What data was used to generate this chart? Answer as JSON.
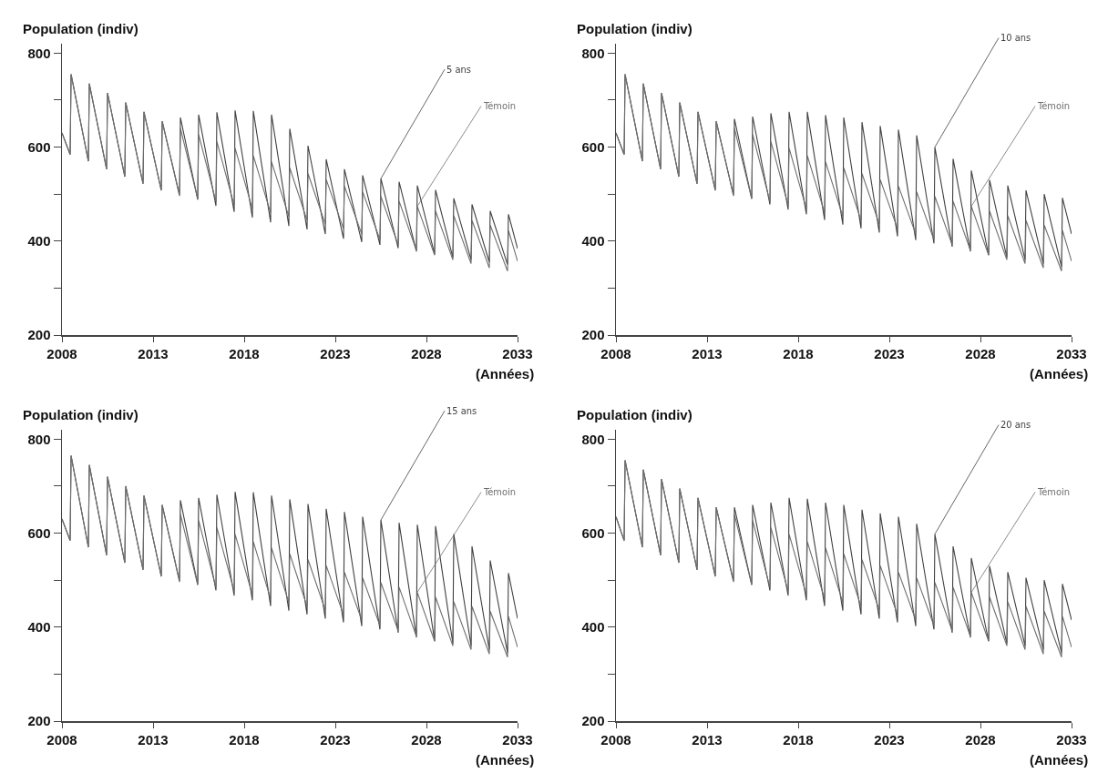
{
  "chart_data": [
    {
      "type": "line",
      "xlabel": "(Années)",
      "ylabel": "Population (indiv)",
      "xlim": [
        2008,
        2033
      ],
      "ylim": [
        200,
        820
      ],
      "xticks": [
        2008,
        2013,
        2018,
        2023,
        2028,
        2033
      ],
      "yticks": [
        200,
        {
          "value": 300,
          "label": null
        },
        400,
        {
          "value": 500,
          "label": null
        },
        600,
        {
          "value": 700,
          "label": null
        },
        800
      ],
      "legend": false,
      "grid": false,
      "x": [
        2008,
        2008.45,
        2008.5,
        2009.45,
        2009.5,
        2010.45,
        2010.5,
        2011.45,
        2011.5,
        2012.45,
        2012.5,
        2013.45,
        2013.5,
        2014.45,
        2014.5,
        2015.45,
        2015.5,
        2016.45,
        2016.5,
        2017.45,
        2017.5,
        2018.45,
        2018.5,
        2019.45,
        2019.5,
        2020.45,
        2020.5,
        2021.45,
        2021.5,
        2022.45,
        2022.5,
        2023.45,
        2023.5,
        2024.45,
        2024.5,
        2025.45,
        2025.5,
        2026.45,
        2026.5,
        2027.45,
        2027.5,
        2028.45,
        2028.5,
        2029.45,
        2029.5,
        2030.45,
        2030.5,
        2031.45,
        2031.5,
        2032.45,
        2032.5,
        2033
      ],
      "series": [
        {
          "name": "5 ans",
          "color": "#404040",
          "values": [
            630,
            584,
            755,
            570,
            735,
            553,
            715,
            537,
            695,
            522,
            675,
            508,
            655,
            498,
            663,
            488,
            669,
            475,
            674,
            462,
            678,
            450,
            677,
            440,
            669,
            432,
            639,
            425,
            603,
            415,
            574,
            405,
            553,
            398,
            540,
            392,
            533,
            385,
            526,
            378,
            518,
            372,
            509,
            365,
            491,
            360,
            478,
            355,
            464,
            350,
            457,
            384
          ]
        },
        {
          "name": "Témoin",
          "color": "#6e6e6e",
          "values": [
            630,
            584,
            755,
            570,
            735,
            553,
            715,
            537,
            695,
            522,
            675,
            508,
            655,
            496,
            640,
            490,
            627,
            484,
            612,
            476,
            598,
            468,
            582,
            460,
            569,
            452,
            556,
            444,
            544,
            436,
            531,
            426,
            517,
            415,
            505,
            403,
            495,
            392,
            485,
            380,
            474,
            370,
            464,
            360,
            454,
            352,
            444,
            343,
            434,
            336,
            423,
            357
          ]
        }
      ]
    },
    {
      "type": "line",
      "xlabel": "(Années)",
      "ylabel": "Population (indiv)",
      "xlim": [
        2008,
        2033
      ],
      "ylim": [
        200,
        820
      ],
      "xticks": [
        2008,
        2013,
        2018,
        2023,
        2028,
        2033
      ],
      "yticks": [
        200,
        {
          "value": 300,
          "label": null
        },
        400,
        {
          "value": 500,
          "label": null
        },
        600,
        {
          "value": 700,
          "label": null
        },
        800
      ],
      "legend": false,
      "grid": false,
      "x": [
        2008,
        2008.45,
        2008.5,
        2009.45,
        2009.5,
        2010.45,
        2010.5,
        2011.45,
        2011.5,
        2012.45,
        2012.5,
        2013.45,
        2013.5,
        2014.45,
        2014.5,
        2015.45,
        2015.5,
        2016.45,
        2016.5,
        2017.45,
        2017.5,
        2018.45,
        2018.5,
        2019.45,
        2019.5,
        2020.45,
        2020.5,
        2021.45,
        2021.5,
        2022.45,
        2022.5,
        2023.45,
        2023.5,
        2024.45,
        2024.5,
        2025.45,
        2025.5,
        2026.45,
        2026.5,
        2027.45,
        2027.5,
        2028.45,
        2028.5,
        2029.45,
        2029.5,
        2030.45,
        2030.5,
        2031.45,
        2031.5,
        2032.45,
        2032.5,
        2033
      ],
      "series": [
        {
          "name": "10 ans",
          "color": "#404040",
          "values": [
            630,
            584,
            755,
            570,
            735,
            553,
            715,
            537,
            695,
            522,
            675,
            508,
            655,
            498,
            660,
            490,
            665,
            478,
            672,
            467,
            675,
            457,
            675,
            445,
            668,
            435,
            663,
            427,
            653,
            418,
            645,
            410,
            637,
            402,
            625,
            395,
            600,
            388,
            575,
            378,
            550,
            370,
            530,
            365,
            518,
            360,
            508,
            352,
            500,
            345,
            492,
            415
          ]
        },
        {
          "name": "Témoin",
          "color": "#6e6e6e",
          "values": [
            630,
            584,
            755,
            570,
            735,
            553,
            715,
            537,
            695,
            522,
            675,
            508,
            655,
            496,
            640,
            490,
            627,
            484,
            612,
            476,
            598,
            468,
            582,
            460,
            569,
            452,
            556,
            444,
            544,
            436,
            531,
            426,
            517,
            415,
            505,
            403,
            495,
            392,
            485,
            380,
            474,
            370,
            464,
            360,
            454,
            352,
            444,
            343,
            434,
            336,
            423,
            357
          ]
        }
      ]
    },
    {
      "type": "line",
      "xlabel": "(Années)",
      "ylabel": "Population (indiv)",
      "xlim": [
        2008,
        2033
      ],
      "ylim": [
        200,
        820
      ],
      "xticks": [
        2008,
        2013,
        2018,
        2023,
        2028,
        2033
      ],
      "yticks": [
        200,
        {
          "value": 300,
          "label": null
        },
        400,
        {
          "value": 500,
          "label": null
        },
        600,
        {
          "value": 700,
          "label": null
        },
        800
      ],
      "legend": false,
      "grid": false,
      "x": [
        2008,
        2008.45,
        2008.5,
        2009.45,
        2009.5,
        2010.45,
        2010.5,
        2011.45,
        2011.5,
        2012.45,
        2012.5,
        2013.45,
        2013.5,
        2014.45,
        2014.5,
        2015.45,
        2015.5,
        2016.45,
        2016.5,
        2017.45,
        2017.5,
        2018.45,
        2018.5,
        2019.45,
        2019.5,
        2020.45,
        2020.5,
        2021.45,
        2021.5,
        2022.45,
        2022.5,
        2023.45,
        2023.5,
        2024.45,
        2024.5,
        2025.45,
        2025.5,
        2026.45,
        2026.5,
        2027.45,
        2027.5,
        2028.45,
        2028.5,
        2029.45,
        2029.5,
        2030.45,
        2030.5,
        2031.45,
        2031.5,
        2032.45,
        2032.5,
        2033
      ],
      "series": [
        {
          "name": "15 ans",
          "color": "#404040",
          "values": [
            630,
            584,
            765,
            570,
            745,
            553,
            720,
            537,
            700,
            522,
            680,
            508,
            660,
            498,
            670,
            490,
            675,
            478,
            682,
            467,
            688,
            457,
            687,
            445,
            680,
            435,
            672,
            427,
            662,
            418,
            652,
            410,
            645,
            402,
            635,
            395,
            628,
            388,
            622,
            378,
            618,
            370,
            615,
            365,
            598,
            360,
            572,
            352,
            542,
            345,
            515,
            418
          ]
        },
        {
          "name": "Témoin",
          "color": "#6e6e6e",
          "values": [
            630,
            584,
            765,
            570,
            745,
            553,
            720,
            537,
            700,
            522,
            680,
            508,
            660,
            496,
            640,
            490,
            627,
            484,
            612,
            476,
            598,
            468,
            582,
            460,
            569,
            452,
            556,
            444,
            544,
            436,
            531,
            426,
            517,
            415,
            505,
            403,
            495,
            392,
            485,
            380,
            474,
            370,
            464,
            360,
            454,
            352,
            444,
            343,
            434,
            336,
            423,
            357
          ]
        }
      ]
    },
    {
      "type": "line",
      "xlabel": "(Années)",
      "ylabel": "Population (indiv)",
      "xlim": [
        2008,
        2033
      ],
      "ylim": [
        200,
        820
      ],
      "xticks": [
        2008,
        2013,
        2018,
        2023,
        2028,
        2033
      ],
      "yticks": [
        200,
        {
          "value": 300,
          "label": null
        },
        400,
        {
          "value": 500,
          "label": null
        },
        600,
        {
          "value": 700,
          "label": null
        },
        800
      ],
      "legend": false,
      "grid": false,
      "x": [
        2008,
        2008.45,
        2008.5,
        2009.45,
        2009.5,
        2010.45,
        2010.5,
        2011.45,
        2011.5,
        2012.45,
        2012.5,
        2013.45,
        2013.5,
        2014.45,
        2014.5,
        2015.45,
        2015.5,
        2016.45,
        2016.5,
        2017.45,
        2017.5,
        2018.45,
        2018.5,
        2019.45,
        2019.5,
        2020.45,
        2020.5,
        2021.45,
        2021.5,
        2022.45,
        2022.5,
        2023.45,
        2023.5,
        2024.45,
        2024.5,
        2025.45,
        2025.5,
        2026.45,
        2026.5,
        2027.45,
        2027.5,
        2028.45,
        2028.5,
        2029.45,
        2029.5,
        2030.45,
        2030.5,
        2031.45,
        2031.5,
        2032.45,
        2032.5,
        2033
      ],
      "series": [
        {
          "name": "20 ans",
          "color": "#404040",
          "values": [
            635,
            584,
            755,
            570,
            735,
            553,
            715,
            537,
            695,
            522,
            675,
            508,
            655,
            498,
            655,
            490,
            660,
            478,
            665,
            467,
            675,
            457,
            673,
            445,
            665,
            435,
            660,
            427,
            650,
            418,
            642,
            410,
            635,
            402,
            620,
            395,
            598,
            388,
            572,
            378,
            547,
            370,
            530,
            365,
            517,
            360,
            505,
            352,
            500,
            345,
            492,
            415
          ]
        },
        {
          "name": "Témoin",
          "color": "#6e6e6e",
          "values": [
            635,
            584,
            755,
            570,
            735,
            553,
            715,
            537,
            695,
            522,
            675,
            508,
            655,
            496,
            640,
            490,
            627,
            484,
            612,
            476,
            598,
            468,
            582,
            460,
            569,
            452,
            556,
            444,
            544,
            436,
            531,
            426,
            517,
            415,
            505,
            403,
            495,
            392,
            485,
            380,
            474,
            370,
            464,
            360,
            454,
            352,
            444,
            343,
            434,
            336,
            423,
            357
          ]
        }
      ]
    }
  ]
}
